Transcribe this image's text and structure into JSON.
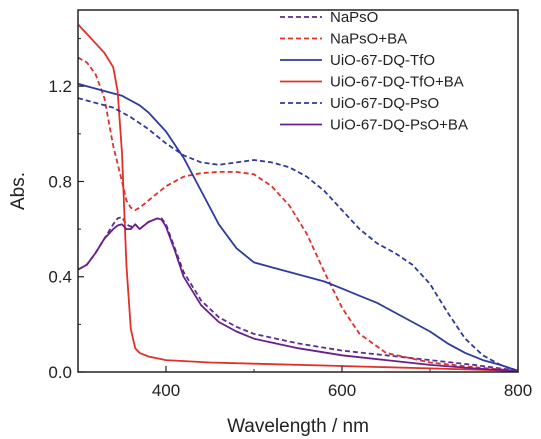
{
  "chart_data": {
    "type": "line",
    "title": "",
    "xlabel": "Wavelength / nm",
    "ylabel": "Abs.",
    "xlim": [
      300,
      800
    ],
    "ylim": [
      0.0,
      1.52
    ],
    "xticks": [
      400,
      600,
      800
    ],
    "yticks": [
      0.0,
      0.4,
      0.8,
      1.2
    ],
    "xtick_labels": [
      "400",
      "600",
      "800"
    ],
    "ytick_labels": [
      "0.0",
      "0.4",
      "0.8",
      "1.2"
    ],
    "grid": false,
    "legend_position": "top-right",
    "series": [
      {
        "name": "NaPsO",
        "color": "#5b2d91",
        "dash": "dashed",
        "x": [
          300,
          310,
          320,
          330,
          340,
          345,
          350,
          355,
          360,
          365,
          370,
          380,
          390,
          395,
          400,
          410,
          420,
          440,
          460,
          480,
          500,
          550,
          600,
          650,
          700,
          750,
          800
        ],
        "y": [
          0.43,
          0.45,
          0.5,
          0.56,
          0.62,
          0.645,
          0.65,
          0.62,
          0.61,
          0.62,
          0.6,
          0.63,
          0.645,
          0.645,
          0.62,
          0.52,
          0.42,
          0.3,
          0.23,
          0.19,
          0.16,
          0.12,
          0.09,
          0.07,
          0.05,
          0.03,
          0.005
        ]
      },
      {
        "name": "NaPsO+BA",
        "color": "#e0302a",
        "dash": "dashed",
        "x": [
          300,
          310,
          320,
          330,
          340,
          350,
          355,
          360,
          365,
          370,
          380,
          400,
          420,
          440,
          460,
          480,
          500,
          520,
          540,
          560,
          580,
          600,
          620,
          650,
          700,
          750,
          800
        ],
        "y": [
          1.32,
          1.3,
          1.25,
          1.15,
          0.95,
          0.8,
          0.72,
          0.69,
          0.68,
          0.69,
          0.72,
          0.78,
          0.82,
          0.835,
          0.84,
          0.84,
          0.83,
          0.78,
          0.7,
          0.58,
          0.42,
          0.27,
          0.16,
          0.08,
          0.04,
          0.02,
          0.005
        ]
      },
      {
        "name": "UiO-67-DQ-TfO",
        "color": "#2e3a9c",
        "dash": "solid",
        "x": [
          300,
          310,
          320,
          330,
          340,
          350,
          360,
          370,
          380,
          400,
          420,
          440,
          460,
          480,
          500,
          520,
          540,
          560,
          580,
          600,
          620,
          640,
          660,
          680,
          700,
          720,
          740,
          760,
          780,
          800
        ],
        "y": [
          1.21,
          1.2,
          1.19,
          1.18,
          1.17,
          1.16,
          1.14,
          1.12,
          1.09,
          1.01,
          0.9,
          0.76,
          0.62,
          0.52,
          0.46,
          0.44,
          0.42,
          0.4,
          0.38,
          0.35,
          0.32,
          0.29,
          0.25,
          0.21,
          0.17,
          0.12,
          0.08,
          0.05,
          0.03,
          0.005
        ]
      },
      {
        "name": "UiO-67-DQ-TfO+BA",
        "color": "#e0302a",
        "dash": "solid",
        "x": [
          300,
          305,
          310,
          320,
          330,
          340,
          345,
          350,
          355,
          360,
          365,
          370,
          380,
          400,
          450,
          500,
          600,
          700,
          800
        ],
        "y": [
          1.46,
          1.44,
          1.42,
          1.38,
          1.34,
          1.28,
          1.18,
          0.92,
          0.45,
          0.18,
          0.1,
          0.08,
          0.065,
          0.05,
          0.04,
          0.035,
          0.025,
          0.015,
          0.005
        ]
      },
      {
        "name": "UiO-67-DQ-PsO",
        "color": "#2e3a9c",
        "dash": "dashed",
        "x": [
          300,
          320,
          340,
          360,
          380,
          400,
          420,
          440,
          460,
          480,
          500,
          520,
          540,
          560,
          580,
          600,
          620,
          640,
          660,
          680,
          700,
          720,
          740,
          760,
          780,
          800
        ],
        "y": [
          1.15,
          1.13,
          1.11,
          1.07,
          1.02,
          0.96,
          0.91,
          0.88,
          0.87,
          0.88,
          0.89,
          0.88,
          0.86,
          0.82,
          0.76,
          0.68,
          0.6,
          0.54,
          0.5,
          0.45,
          0.37,
          0.25,
          0.14,
          0.07,
          0.03,
          0.005
        ]
      },
      {
        "name": "UiO-67-DQ-PsO+BA",
        "color": "#6a1f8a",
        "dash": "solid",
        "x": [
          300,
          310,
          320,
          330,
          340,
          345,
          350,
          355,
          360,
          365,
          370,
          380,
          390,
          395,
          400,
          410,
          420,
          440,
          460,
          480,
          500,
          550,
          600,
          650,
          700,
          750,
          800
        ],
        "y": [
          0.43,
          0.45,
          0.5,
          0.56,
          0.6,
          0.615,
          0.62,
          0.6,
          0.6,
          0.62,
          0.6,
          0.63,
          0.645,
          0.64,
          0.61,
          0.51,
          0.4,
          0.28,
          0.21,
          0.17,
          0.14,
          0.1,
          0.07,
          0.05,
          0.03,
          0.015,
          0.003
        ]
      }
    ]
  }
}
